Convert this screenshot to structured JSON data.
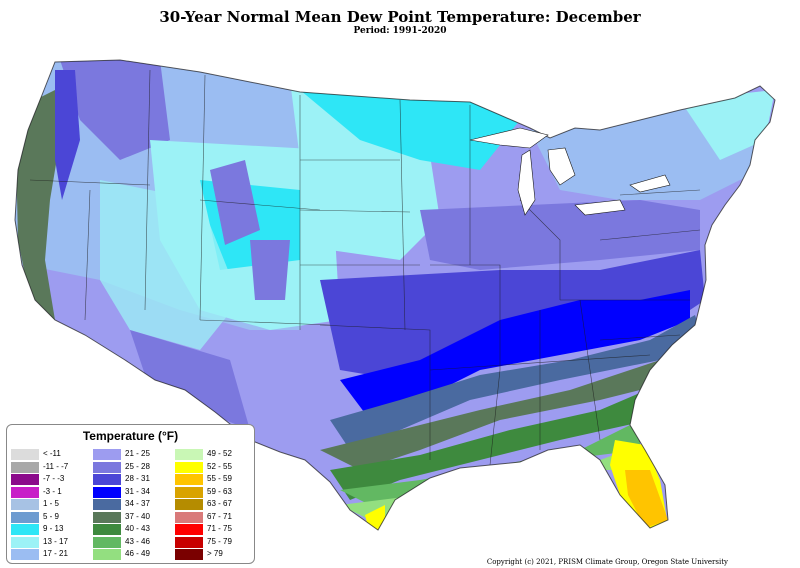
{
  "title": "30-Year Normal Mean Dew Point Temperature: December",
  "subtitle": "Period: 1991-2020",
  "copyright": "Copyright (c) 2021, PRISM Climate Group, Oregon State University",
  "legend": {
    "title": "Temperature (°F)",
    "items": [
      {
        "label": "< -11",
        "color": "#dcdcdc"
      },
      {
        "label": "-11 - -7",
        "color": "#a8a8a8"
      },
      {
        "label": "-7 - -3",
        "color": "#8b0a8b"
      },
      {
        "label": "-3 - 1",
        "color": "#c81ec8"
      },
      {
        "label": "1 - 5",
        "color": "#a7c2e4"
      },
      {
        "label": "5 - 9",
        "color": "#6d9bd0"
      },
      {
        "label": "9 - 13",
        "color": "#2ee6f6"
      },
      {
        "label": "13 - 17",
        "color": "#9cf2f6"
      },
      {
        "label": "17 - 21",
        "color": "#9bbdf2"
      },
      {
        "label": "21 - 25",
        "color": "#9d9cf0"
      },
      {
        "label": "25 - 28",
        "color": "#7b78de"
      },
      {
        "label": "28 - 31",
        "color": "#4b46d6"
      },
      {
        "label": "31 - 34",
        "color": "#0000ff"
      },
      {
        "label": "34 - 37",
        "color": "#4a6aa0"
      },
      {
        "label": "37 - 40",
        "color": "#5a785a"
      },
      {
        "label": "40 - 43",
        "color": "#3e8a3e"
      },
      {
        "label": "43 - 46",
        "color": "#62b862"
      },
      {
        "label": "46 - 49",
        "color": "#93df80"
      },
      {
        "label": "49 - 52",
        "color": "#c9f7b5"
      },
      {
        "label": "52 - 55",
        "color": "#ffff00"
      },
      {
        "label": "55 - 59",
        "color": "#ffc400"
      },
      {
        "label": "59 - 63",
        "color": "#d9a300"
      },
      {
        "label": "63 - 67",
        "color": "#b58c00"
      },
      {
        "label": "67 - 71",
        "color": "#d97a7a"
      },
      {
        "label": "71 - 75",
        "color": "#ff0000"
      },
      {
        "label": "75 - 79",
        "color": "#c80000"
      },
      {
        "label": "> 79",
        "color": "#7a0000"
      }
    ]
  }
}
